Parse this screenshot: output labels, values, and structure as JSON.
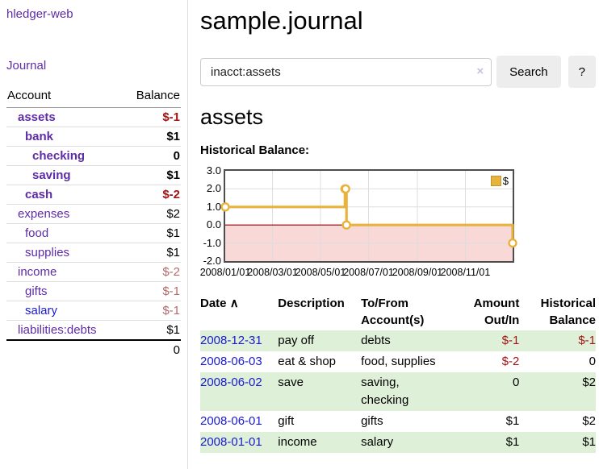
{
  "sidebar": {
    "title": "hledger-web",
    "journal_link": "Journal",
    "accounts_table": {
      "headers": [
        "Account",
        "Balance"
      ],
      "rows": [
        {
          "name": "assets",
          "depth": 1,
          "bold": true,
          "balance": "$-1",
          "balance_color": "neg-strong",
          "link_color": "purple"
        },
        {
          "name": "bank",
          "depth": 2,
          "bold": true,
          "balance": "$1",
          "balance_color": "normal",
          "link_color": "purple"
        },
        {
          "name": "checking",
          "depth": 3,
          "bold": true,
          "balance": "0",
          "balance_color": "normal",
          "link_color": "purple"
        },
        {
          "name": "saving",
          "depth": 3,
          "bold": true,
          "balance": "$1",
          "balance_color": "normal",
          "link_color": "purple"
        },
        {
          "name": "cash",
          "depth": 2,
          "bold": true,
          "balance": "$-2",
          "balance_color": "neg-strong",
          "link_color": "purple"
        },
        {
          "name": "expenses",
          "depth": 1,
          "bold": false,
          "balance": "$2",
          "balance_color": "normal",
          "link_color": "purple"
        },
        {
          "name": "food",
          "depth": 2,
          "bold": false,
          "balance": "$1",
          "balance_color": "normal",
          "link_color": "purple"
        },
        {
          "name": "supplies",
          "depth": 2,
          "bold": false,
          "balance": "$1",
          "balance_color": "normal",
          "link_color": "purple"
        },
        {
          "name": "income",
          "depth": 1,
          "bold": false,
          "balance": "$-2",
          "balance_color": "neg-soft",
          "link_color": "purple"
        },
        {
          "name": "gifts",
          "depth": 2,
          "bold": false,
          "balance": "$-1",
          "balance_color": "neg-soft",
          "link_color": "purple"
        },
        {
          "name": "salary",
          "depth": 2,
          "bold": false,
          "balance": "$-1",
          "balance_color": "neg-soft",
          "link_color": "blue"
        },
        {
          "name": "liabilities:debts",
          "depth": 1,
          "bold": false,
          "balance": "$1",
          "balance_color": "normal",
          "link_color": "purple"
        }
      ],
      "total": "0"
    }
  },
  "header": {
    "title": "sample.journal"
  },
  "search": {
    "value": "inacct:assets",
    "clear_icon": "×",
    "search_label": "Search",
    "help_label": "?"
  },
  "register": {
    "account_title": "assets",
    "chart_label": "Historical Balance:",
    "table": {
      "headers": [
        "Date",
        "Description",
        "To/From Account(s)",
        "Amount Out/In",
        "Historical Balance"
      ],
      "sort_icon": "∧",
      "rows": [
        {
          "date": "2008-12-31",
          "description": "pay off",
          "accounts": "debts",
          "amount": "$-1",
          "balance": "$-1"
        },
        {
          "date": "2008-06-03",
          "description": "eat & shop",
          "accounts": "food, supplies",
          "amount": "$-2",
          "balance": "0"
        },
        {
          "date": "2008-06-02",
          "description": "save",
          "accounts": "saving, checking",
          "amount": "0",
          "balance": "$2"
        },
        {
          "date": "2008-06-01",
          "description": "gift",
          "accounts": "gifts",
          "amount": "$1",
          "balance": "$2"
        },
        {
          "date": "2008-01-01",
          "description": "income",
          "accounts": "salary",
          "amount": "$1",
          "balance": "$1"
        }
      ]
    }
  },
  "chart_data": {
    "type": "line",
    "title": "Historical Balance",
    "series": [
      {
        "name": "$",
        "step": true,
        "points": [
          [
            "2008-01-01",
            1
          ],
          [
            "2008-06-01",
            2
          ],
          [
            "2008-06-02",
            2
          ],
          [
            "2008-06-03",
            0
          ],
          [
            "2008-12-31",
            -1
          ]
        ]
      }
    ],
    "x_range": [
      "2008-01-01",
      "2008-12-31"
    ],
    "ylim": [
      -2,
      3
    ],
    "yticks": [
      "3.0",
      "2.0",
      "1.0",
      "0.0",
      "-1.0",
      "-2.0"
    ],
    "xticks": [
      "2008/01/01",
      "2008/03/01",
      "2008/05/01",
      "2008/07/01",
      "2008/09/01",
      "2008/11/01"
    ],
    "legend": "$",
    "legend_position": "top-right",
    "grid": true,
    "colors": {
      "line": "#e8b33c",
      "marker_fill": "#ffffff",
      "negative_fill": "#f9d8d8",
      "zero_line": "#8b0000",
      "grid": "#ddd"
    }
  }
}
